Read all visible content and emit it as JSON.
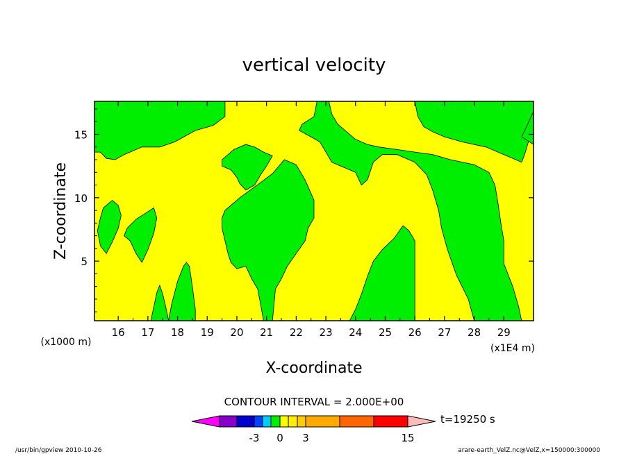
{
  "chart_data": {
    "type": "filled-contour",
    "title": "vertical velocity",
    "xlabel": "X-coordinate",
    "ylabel": "Z-coordinate",
    "x_unit": "(x1E4 m)",
    "y_unit": "(x1000 m)",
    "xlim": [
      15.2,
      30.0
    ],
    "ylim": [
      0.3,
      17.6
    ],
    "x_ticks": [
      16,
      17,
      18,
      19,
      20,
      21,
      22,
      23,
      24,
      25,
      26,
      27,
      28,
      29
    ],
    "y_ticks": [
      5,
      10,
      15
    ],
    "background_level_color": "#ffff00",
    "region_color": "#00ee00",
    "regions": [
      {
        "name": "top-left",
        "pts": [
          [
            15.2,
            17.6
          ],
          [
            19.6,
            17.6
          ],
          [
            19.6,
            16.4
          ],
          [
            19.2,
            15.7
          ],
          [
            18.6,
            15.3
          ],
          [
            17.9,
            14.4
          ],
          [
            17.4,
            14.0
          ],
          [
            16.8,
            14.0
          ],
          [
            16.2,
            13.4
          ],
          [
            15.9,
            13.0
          ],
          [
            15.6,
            13.1
          ],
          [
            15.4,
            13.6
          ],
          [
            15.2,
            13.6
          ]
        ]
      },
      {
        "name": "left-blob",
        "pts": [
          [
            15.5,
            9.2
          ],
          [
            15.8,
            9.8
          ],
          [
            16.0,
            9.4
          ],
          [
            16.1,
            8.6
          ],
          [
            16.0,
            7.6
          ],
          [
            15.8,
            6.5
          ],
          [
            15.6,
            5.6
          ],
          [
            15.4,
            6.2
          ],
          [
            15.3,
            7.4
          ],
          [
            15.4,
            8.4
          ]
        ]
      },
      {
        "name": "left-blob-2",
        "pts": [
          [
            16.3,
            7.6
          ],
          [
            16.6,
            8.3
          ],
          [
            17.0,
            8.9
          ],
          [
            17.2,
            9.2
          ],
          [
            17.3,
            8.4
          ],
          [
            17.2,
            7.2
          ],
          [
            17.0,
            5.9
          ],
          [
            16.8,
            4.9
          ],
          [
            16.6,
            5.6
          ],
          [
            16.4,
            6.6
          ],
          [
            16.2,
            7.0
          ]
        ]
      },
      {
        "name": "bottom-small-left",
        "pts": [
          [
            17.1,
            0.3
          ],
          [
            17.2,
            1.4
          ],
          [
            17.3,
            2.5
          ],
          [
            17.4,
            3.1
          ],
          [
            17.5,
            2.4
          ],
          [
            17.6,
            1.4
          ],
          [
            17.7,
            0.3
          ]
        ]
      },
      {
        "name": "bottom-small-right",
        "pts": [
          [
            17.7,
            0.3
          ],
          [
            17.8,
            1.6
          ],
          [
            18.0,
            3.4
          ],
          [
            18.2,
            4.6
          ],
          [
            18.3,
            4.9
          ],
          [
            18.4,
            4.6
          ],
          [
            18.5,
            3.0
          ],
          [
            18.6,
            1.2
          ],
          [
            18.6,
            0.3
          ]
        ]
      },
      {
        "name": "center-upper",
        "pts": [
          [
            19.5,
            13.0
          ],
          [
            19.9,
            13.8
          ],
          [
            20.3,
            14.2
          ],
          [
            20.6,
            14.0
          ],
          [
            20.9,
            13.6
          ],
          [
            21.2,
            13.3
          ],
          [
            21.0,
            12.5
          ],
          [
            20.8,
            11.8
          ],
          [
            20.6,
            11.0
          ],
          [
            20.3,
            10.6
          ],
          [
            20.1,
            11.1
          ],
          [
            20.0,
            11.6
          ],
          [
            19.8,
            12.2
          ],
          [
            19.5,
            12.5
          ]
        ]
      },
      {
        "name": "center-main",
        "pts": [
          [
            19.6,
            9.0
          ],
          [
            20.1,
            10.0
          ],
          [
            20.8,
            11.2
          ],
          [
            21.2,
            11.9
          ],
          [
            21.6,
            13.0
          ],
          [
            22.0,
            12.6
          ],
          [
            22.3,
            11.4
          ],
          [
            22.6,
            9.8
          ],
          [
            22.6,
            8.4
          ],
          [
            22.4,
            7.6
          ],
          [
            22.3,
            6.6
          ],
          [
            22.0,
            5.6
          ],
          [
            21.7,
            4.6
          ],
          [
            21.5,
            3.6
          ],
          [
            21.3,
            2.8
          ],
          [
            21.2,
            0.3
          ],
          [
            20.9,
            0.3
          ],
          [
            20.8,
            1.6
          ],
          [
            20.7,
            2.8
          ],
          [
            20.5,
            3.6
          ],
          [
            20.3,
            4.6
          ],
          [
            20.0,
            4.4
          ],
          [
            19.8,
            4.9
          ],
          [
            19.7,
            5.6
          ],
          [
            19.6,
            6.6
          ],
          [
            19.5,
            7.6
          ],
          [
            19.5,
            8.4
          ]
        ]
      },
      {
        "name": "top-center-right",
        "pts": [
          [
            22.7,
            17.6
          ],
          [
            26.0,
            17.6
          ],
          [
            26.1,
            16.4
          ],
          [
            26.3,
            15.6
          ],
          [
            26.6,
            15.2
          ],
          [
            27.0,
            14.8
          ],
          [
            27.6,
            14.4
          ],
          [
            28.4,
            14.0
          ],
          [
            29.0,
            13.4
          ],
          [
            29.4,
            13.0
          ],
          [
            29.6,
            12.8
          ],
          [
            29.7,
            13.4
          ],
          [
            29.8,
            14.2
          ],
          [
            29.9,
            15.0
          ],
          [
            30.0,
            15.6
          ],
          [
            30.0,
            17.6
          ],
          [
            30.0,
            17.6
          ]
        ]
      },
      {
        "name": "top-center-right-lower",
        "pts": [
          [
            22.7,
            17.6
          ],
          [
            22.6,
            16.4
          ],
          [
            22.2,
            15.8
          ],
          [
            22.1,
            15.3
          ],
          [
            22.5,
            14.8
          ],
          [
            22.8,
            14.4
          ],
          [
            23.0,
            13.6
          ],
          [
            23.2,
            12.8
          ],
          [
            23.6,
            12.4
          ],
          [
            24.0,
            12.0
          ],
          [
            24.2,
            11.0
          ],
          [
            24.4,
            11.4
          ],
          [
            24.6,
            12.8
          ],
          [
            24.9,
            13.4
          ],
          [
            25.4,
            13.4
          ],
          [
            26.0,
            12.8
          ],
          [
            26.4,
            11.8
          ],
          [
            26.6,
            10.6
          ],
          [
            26.8,
            9.0
          ],
          [
            26.9,
            7.6
          ],
          [
            27.1,
            5.9
          ],
          [
            27.4,
            3.9
          ],
          [
            27.8,
            2.0
          ],
          [
            28.0,
            0.3
          ],
          [
            29.6,
            0.3
          ],
          [
            29.5,
            1.4
          ],
          [
            29.3,
            3.0
          ],
          [
            29.0,
            4.8
          ],
          [
            29.0,
            6.6
          ],
          [
            28.9,
            8.0
          ],
          [
            28.8,
            9.6
          ],
          [
            28.7,
            11.0
          ],
          [
            28.5,
            12.0
          ],
          [
            28.0,
            12.6
          ],
          [
            27.2,
            13.0
          ],
          [
            26.6,
            13.4
          ],
          [
            26.0,
            13.6
          ],
          [
            25.4,
            13.8
          ],
          [
            24.8,
            14.0
          ],
          [
            24.4,
            14.2
          ],
          [
            24.0,
            14.6
          ],
          [
            23.7,
            15.2
          ],
          [
            23.4,
            15.8
          ],
          [
            23.2,
            16.6
          ],
          [
            23.1,
            17.6
          ]
        ]
      },
      {
        "name": "right-edge",
        "pts": [
          [
            29.6,
            14.8
          ],
          [
            29.8,
            15.8
          ],
          [
            30.0,
            16.8
          ],
          [
            30.0,
            14.2
          ]
        ]
      },
      {
        "name": "bottom-center-right",
        "pts": [
          [
            23.8,
            0.3
          ],
          [
            24.0,
            1.2
          ],
          [
            24.2,
            2.4
          ],
          [
            24.4,
            3.8
          ],
          [
            24.6,
            5.0
          ],
          [
            24.9,
            5.9
          ],
          [
            25.3,
            6.8
          ],
          [
            25.6,
            7.8
          ],
          [
            25.8,
            7.4
          ],
          [
            26.0,
            6.6
          ],
          [
            26.0,
            5.6
          ],
          [
            26.0,
            4.0
          ],
          [
            26.0,
            2.4
          ],
          [
            26.0,
            0.3
          ]
        ]
      }
    ],
    "colorbar_title": "CONTOUR INTERVAL = 2.000E+00",
    "colorbar_colors": [
      "#ff00ff",
      "#8800cc",
      "#0000cc",
      "#0044ff",
      "#00ccff",
      "#00ee00",
      "#ffff00",
      "#ffee00",
      "#ffcc00",
      "#ffaa00",
      "#ff6600",
      "#ff0000",
      "#ff7777",
      "#ffbbbb"
    ],
    "colorbar_labels": [
      "-3",
      "0",
      "3",
      "15"
    ],
    "time_label": "t=19250 s",
    "footer_left": "/usr/bin/gpview   2010-10-26",
    "footer_right": "arare-earth_VelZ.nc@VelZ,x=150000:300000"
  }
}
